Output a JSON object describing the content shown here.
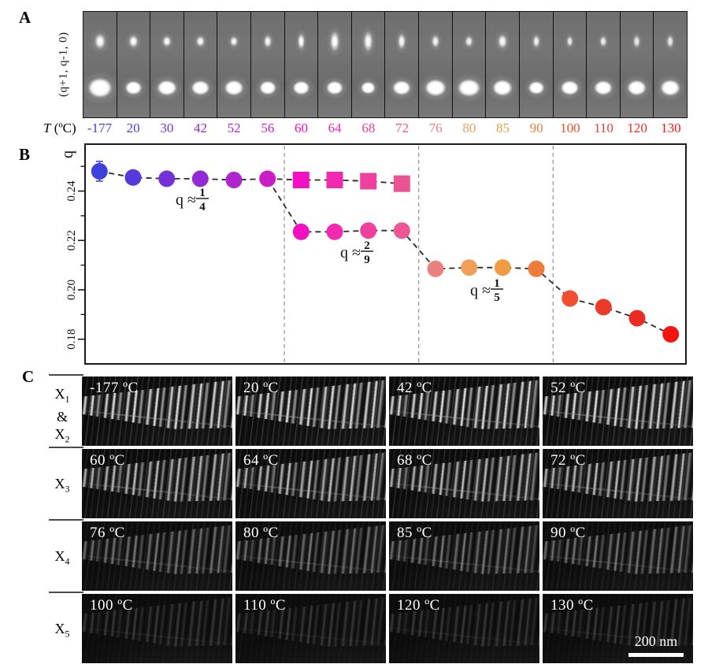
{
  "panel_a": {
    "label": "A",
    "axis_label": "(q+1, q-1, 0)",
    "temperature_header_symbol": "T",
    "temperature_header_unit": "(ºC)",
    "temperatures": [
      "-177",
      "20",
      "30",
      "42",
      "52",
      "56",
      "60",
      "64",
      "68",
      "72",
      "76",
      "80",
      "85",
      "90",
      "100",
      "110",
      "120",
      "130"
    ],
    "temperature_colors": [
      "#4040da",
      "#5639dc",
      "#7431d8",
      "#9129d5",
      "#b124cd",
      "#c91dc7",
      "#ef10c1",
      "#f42aae",
      "#f23e9b",
      "#ec5694",
      "#ec8080",
      "#f09f5a",
      "#f19a45",
      "#ee7b38",
      "#ef4e2f",
      "#e93b28",
      "#ea2c23",
      "#f41414"
    ]
  },
  "panel_b": {
    "label": "B"
  },
  "chart_data": {
    "type": "scatter",
    "title": "",
    "xlabel": "T (ºC)",
    "ylabel": "q",
    "x_categories": [
      -177,
      20,
      30,
      42,
      52,
      56,
      60,
      64,
      68,
      72,
      76,
      80,
      85,
      90,
      100,
      110,
      120,
      130
    ],
    "ylim": [
      0.17,
      0.259
    ],
    "yticks_major": [
      0.24,
      0.22,
      0.2,
      0.18
    ],
    "ytick_labels": [
      "0.24",
      "0.22",
      "0.20",
      "0.18"
    ],
    "yticks_minor": [
      0.25,
      0.23,
      0.21,
      0.19
    ],
    "grid": false,
    "legend": "none",
    "series": [
      {
        "name": "q-modulation-wavevector-circles",
        "marker": "circle",
        "x_indices": [
          0,
          1,
          2,
          3,
          4,
          5,
          6,
          7,
          8,
          9,
          10,
          11,
          12,
          13,
          14,
          15,
          16,
          17
        ],
        "values": [
          0.248,
          0.2455,
          0.245,
          0.245,
          0.2445,
          0.245,
          0.2235,
          0.2235,
          0.224,
          0.224,
          0.2085,
          0.209,
          0.209,
          0.2085,
          0.1965,
          0.193,
          0.1885,
          0.182
        ],
        "colors": [
          "#4040da",
          "#5639dc",
          "#7431d8",
          "#9129d5",
          "#b124cd",
          "#c91dc7",
          "#f30fc2",
          "#f22ab2",
          "#f0409e",
          "#ec5694",
          "#ec8080",
          "#f09f5a",
          "#f19a45",
          "#ee7b38",
          "#ef4e2f",
          "#e93b28",
          "#ea2c23",
          "#f41414"
        ]
      },
      {
        "name": "q-coexisting-quarter-branch-squares",
        "marker": "square",
        "x_indices": [
          6,
          7,
          8,
          9
        ],
        "values": [
          0.2445,
          0.2445,
          0.244,
          0.243
        ],
        "colors": [
          "#f30fc2",
          "#f22ab2",
          "#f0409e",
          "#e95394"
        ]
      }
    ],
    "error_bar": {
      "x_index": 0,
      "value": 0.248,
      "plus": 0.004,
      "minus": 0.004,
      "color": "#4444d8"
    },
    "annotations": [
      {
        "prefix": "q",
        "approx": "≈",
        "numerator": "1",
        "denominator": "4"
      },
      {
        "prefix": "q",
        "approx": "≈",
        "numerator": "2",
        "denominator": "9"
      },
      {
        "prefix": "q",
        "approx": "≈",
        "numerator": "1",
        "denominator": "5"
      }
    ],
    "separators_after_index": [
      5,
      9,
      13
    ]
  },
  "panel_c": {
    "label": "C",
    "rows": [
      {
        "label_parts": [
          {
            "t": "X",
            "s": "1"
          },
          {
            "t": "&"
          },
          {
            "t": "X",
            "s": "2"
          }
        ],
        "cells": [
          "-177 ºC",
          "20 ºC",
          "42 ºC",
          "52 ºC"
        ]
      },
      {
        "label_parts": [
          {
            "t": "X",
            "s": "3"
          }
        ],
        "cells": [
          "60 ºC",
          "64 ºC",
          "68 ºC",
          "72 ºC"
        ]
      },
      {
        "label_parts": [
          {
            "t": "X",
            "s": "4"
          }
        ],
        "cells": [
          "76 ºC",
          "80 ºC",
          "85 ºC",
          "90 ºC"
        ]
      },
      {
        "label_parts": [
          {
            "t": "X",
            "s": "5"
          }
        ],
        "cells": [
          "100 ºC",
          "110 ºC",
          "120 ºC",
          "130 ºC"
        ]
      }
    ],
    "scale_bar_label": "200 nm"
  }
}
